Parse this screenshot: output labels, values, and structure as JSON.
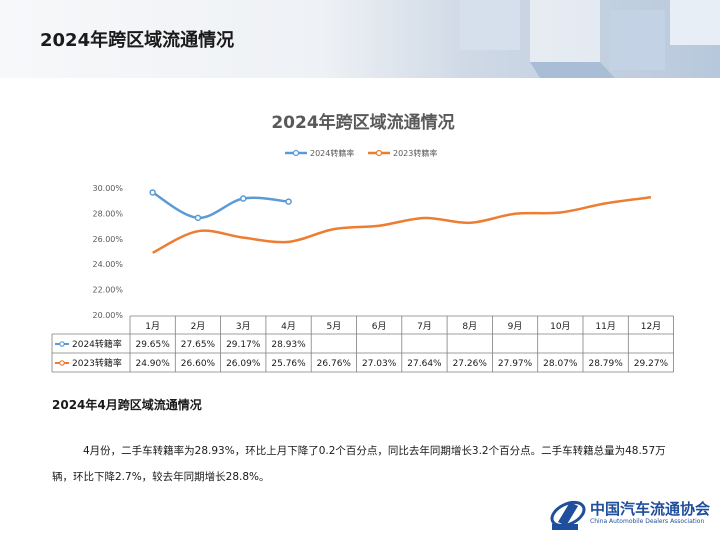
{
  "page": {
    "title": "2024年跨区域流通情况"
  },
  "chart_data": {
    "type": "line",
    "title": "2024年跨区域流通情况",
    "categories": [
      "1月",
      "2月",
      "3月",
      "4月",
      "5月",
      "6月",
      "7月",
      "8月",
      "9月",
      "10月",
      "11月",
      "12月"
    ],
    "ylim": [
      20,
      30
    ],
    "yticks": [
      "20.00%",
      "22.00%",
      "24.00%",
      "26.00%",
      "28.00%",
      "30.00%"
    ],
    "legend_position": "top",
    "series": [
      {
        "name": "2024转籍率",
        "color": "#5b9bd5",
        "values": [
          29.65,
          27.65,
          29.17,
          28.93,
          null,
          null,
          null,
          null,
          null,
          null,
          null,
          null
        ],
        "labels": [
          "29.65%",
          "27.65%",
          "29.17%",
          "28.93%",
          "",
          "",
          "",
          "",
          "",
          "",
          "",
          ""
        ]
      },
      {
        "name": "2023转籍率",
        "color": "#ed7d31",
        "values": [
          24.9,
          26.6,
          26.09,
          25.76,
          26.76,
          27.03,
          27.64,
          27.26,
          27.97,
          28.07,
          28.79,
          29.27
        ],
        "labels": [
          "24.90%",
          "26.60%",
          "26.09%",
          "25.76%",
          "26.76%",
          "27.03%",
          "27.64%",
          "27.26%",
          "27.97%",
          "28.07%",
          "28.79%",
          "29.27%"
        ]
      }
    ]
  },
  "section": {
    "title": "2024年4月跨区域流通情况",
    "paragraph": "4月份，二手车转籍率为28.93%，环比上月下降了0.2个百分点，同比去年同期增长3.2个百分点。二手车转籍总量为48.57万辆，环比下降2.7%，较去年同期增长28.8%。"
  },
  "logo": {
    "name": "中国汽车流通协会",
    "sub": "China Automobile Dealers Association"
  }
}
